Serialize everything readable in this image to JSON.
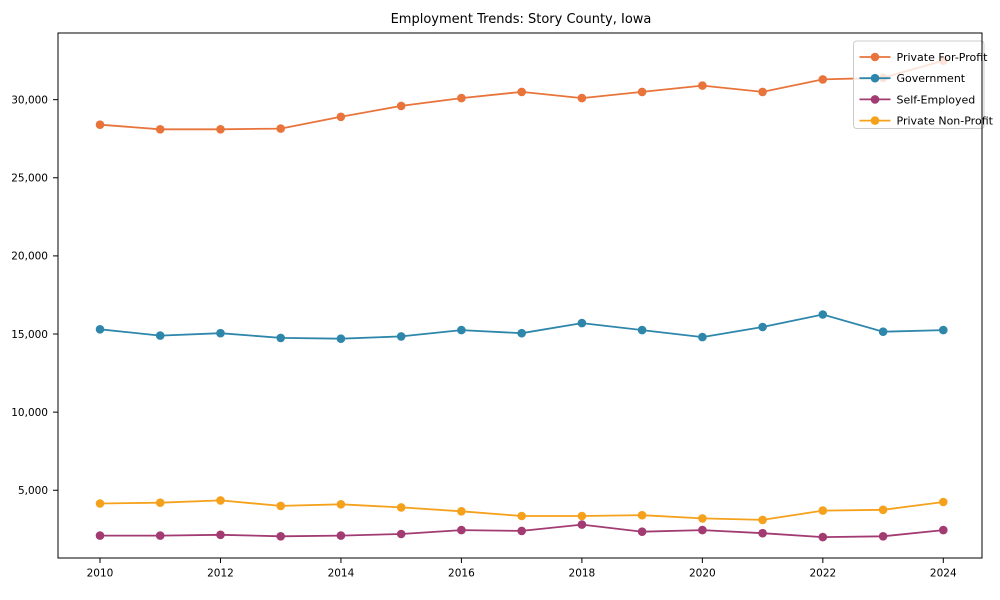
{
  "chart_data": {
    "type": "line",
    "title": "Employment Trends: Story County, Iowa",
    "xlabel": "",
    "ylabel": "",
    "grid": false,
    "legend_position": "upper right",
    "xlim": [
      2009.3,
      2024.65
    ],
    "ylim": [
      660,
      34270
    ],
    "x": [
      2010,
      2011,
      2012,
      2013,
      2014,
      2015,
      2016,
      2017,
      2018,
      2019,
      2020,
      2021,
      2022,
      2023,
      2024
    ],
    "x_ticks": [
      2010,
      2012,
      2014,
      2016,
      2018,
      2020,
      2022,
      2024
    ],
    "x_tick_labels": [
      "2010",
      "2012",
      "2014",
      "2016",
      "2018",
      "2020",
      "2022",
      "2024"
    ],
    "y_ticks": [
      5000,
      10000,
      15000,
      20000,
      25000,
      30000
    ],
    "y_tick_labels": [
      "5,000",
      "10,000",
      "15,000",
      "20,000",
      "25,000",
      "30,000"
    ],
    "series": [
      {
        "name": "Private For-Profit",
        "color": "#E8743B",
        "values": [
          28400,
          28100,
          28100,
          28150,
          28900,
          29600,
          30100,
          30500,
          30100,
          30500,
          30900,
          30500,
          31300,
          31400,
          32500
        ]
      },
      {
        "name": "Government",
        "color": "#2E86AB",
        "values": [
          15300,
          14900,
          15050,
          14750,
          14700,
          14850,
          15250,
          15050,
          15700,
          15250,
          14800,
          15450,
          16250,
          15150,
          15250
        ]
      },
      {
        "name": "Self-Employed",
        "color": "#A23B72",
        "values": [
          2100,
          2100,
          2150,
          2050,
          2100,
          2200,
          2450,
          2400,
          2800,
          2350,
          2450,
          2250,
          2000,
          2050,
          2450
        ]
      },
      {
        "name": "Private Non-Profit",
        "color": "#F5A11B",
        "values": [
          4150,
          4200,
          4350,
          4000,
          4100,
          3900,
          3650,
          3350,
          3350,
          3400,
          3200,
          3100,
          3700,
          3750,
          4250
        ]
      }
    ]
  }
}
